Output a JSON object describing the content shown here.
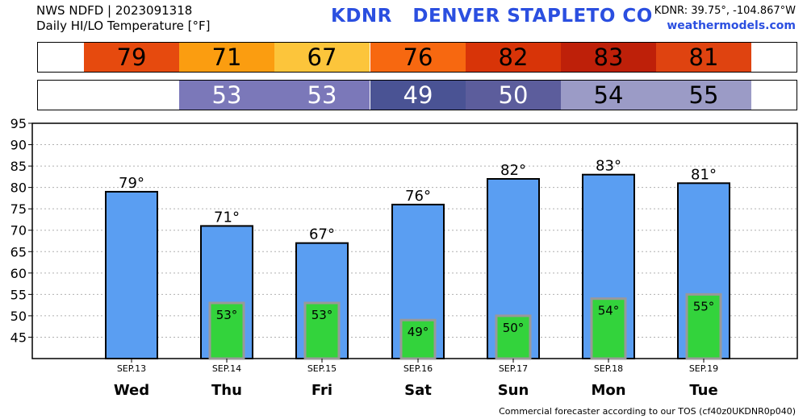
{
  "header": {
    "line1": "NWS NDFD | 2023091318",
    "line2": "Daily HI/LO Temperature [°F]",
    "station_id": "KDNR",
    "station_name": "DENVER STAPLETO CO",
    "coords": "KDNR: 39.75°, -104.867°W",
    "site": "weathermodels.com"
  },
  "hi_strip": {
    "values": [
      "79",
      "71",
      "67",
      "76",
      "82",
      "83",
      "81"
    ],
    "colors": [
      "#e64a0e",
      "#fb9d10",
      "#fcc53b",
      "#f76810",
      "#d83408",
      "#be2009",
      "#df4310"
    ],
    "text_color": "#000000"
  },
  "lo_strip": {
    "values": [
      "",
      "53",
      "53",
      "49",
      "50",
      "54",
      "55"
    ],
    "colors": [
      "#ffffff",
      "#7b78b9",
      "#7b78b9",
      "#4a5394",
      "#5c5d9c",
      "#9b9bc6",
      "#9b9bc6"
    ],
    "text_colors": [
      "#000000",
      "#ffffff",
      "#ffffff",
      "#ffffff",
      "#ffffff",
      "#000000",
      "#000000"
    ]
  },
  "chart_data": {
    "type": "bar",
    "categories": [
      "Wed",
      "Thu",
      "Fri",
      "Sat",
      "Sun",
      "Mon",
      "Tue"
    ],
    "dates": [
      "SEP.13",
      "SEP.14",
      "SEP.15",
      "SEP.16",
      "SEP.17",
      "SEP.18",
      "SEP.19"
    ],
    "series": [
      {
        "values": [
          79,
          71,
          67,
          76,
          82,
          83,
          81
        ],
        "labels": [
          "79°",
          "71°",
          "67°",
          "76°",
          "82°",
          "83°",
          "81°"
        ],
        "color": "#5a9ef2"
      },
      {
        "values": [
          null,
          53,
          53,
          49,
          50,
          54,
          55
        ],
        "labels": [
          "",
          "53°",
          "53°",
          "49°",
          "50°",
          "54°",
          "55°"
        ],
        "color": "#33d33c"
      }
    ],
    "yticks": [
      45,
      50,
      55,
      60,
      65,
      70,
      75,
      80,
      85,
      90,
      95
    ],
    "ylim": [
      40,
      95
    ],
    "grid": true
  },
  "footer": "Commercial forecaster according to our TOS (cf40z0UKDNR0p040)"
}
